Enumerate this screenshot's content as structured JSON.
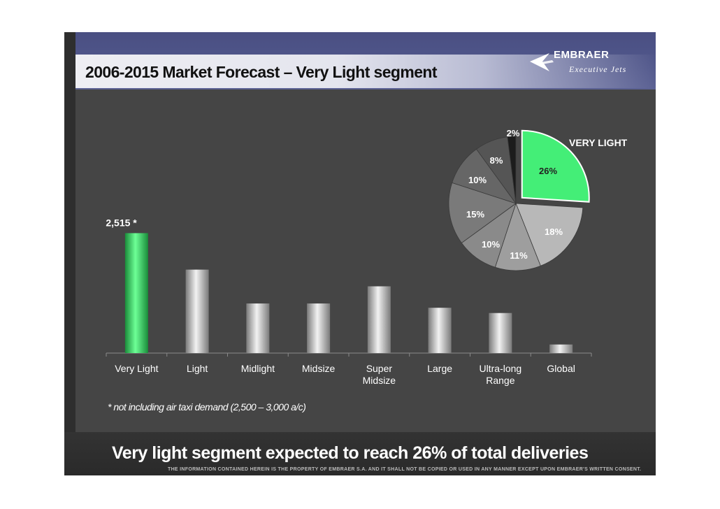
{
  "header": {
    "title": "2006-2015 Market Forecast – Very Light segment",
    "brand_name": "EMBRAER",
    "brand_sub": "Executive Jets"
  },
  "chart_data": [
    {
      "type": "bar",
      "categories": [
        "Very Light",
        "Light",
        "Midlight",
        "Midsize",
        "Super Midsize",
        "Large",
        "Ultra-long Range",
        "Global"
      ],
      "category_lines": [
        [
          "Very Light"
        ],
        [
          "Light"
        ],
        [
          "Midlight"
        ],
        [
          "Midsize"
        ],
        [
          "Super",
          "Midsize"
        ],
        [
          "Large"
        ],
        [
          "Ultra-long",
          "Range"
        ],
        [
          "Global"
        ]
      ],
      "values": [
        2515,
        1750,
        1040,
        1040,
        1400,
        950,
        840,
        180
      ],
      "ylim": [
        0,
        2800
      ],
      "data_labels": [
        "2,515 *",
        "",
        "",
        "",
        "",
        "",
        "",
        ""
      ],
      "colors": {
        "highlight": "#3ee36a",
        "bar": "#d4d4d4"
      }
    },
    {
      "type": "pie",
      "labels": [
        "Very Light",
        "Light",
        "Midlight",
        "Midsize",
        "Super Midsize",
        "Large",
        "Ultra-long Range",
        "Global"
      ],
      "values": [
        26,
        18,
        11,
        10,
        15,
        10,
        8,
        2
      ],
      "value_labels": [
        "26%",
        "18%",
        "11%",
        "10%",
        "15%",
        "10%",
        "8%",
        "2%"
      ],
      "annotation": "VERY LIGHT",
      "colors": [
        "#44ee77",
        "#b8b8b8",
        "#9e9e9e",
        "#8a8a8a",
        "#7a7a7a",
        "#666666",
        "#555555",
        "#1c1c1c"
      ]
    }
  ],
  "footnote": "* not including air taxi demand (2,500 – 3,000 a/c)",
  "conclusion": "Very light segment expected to reach 26% of total deliveries",
  "disclaimer": "The information contained herein is the property of Embraer S.A. and it shall not be copied or used in any manner except upon Embraer's written consent."
}
